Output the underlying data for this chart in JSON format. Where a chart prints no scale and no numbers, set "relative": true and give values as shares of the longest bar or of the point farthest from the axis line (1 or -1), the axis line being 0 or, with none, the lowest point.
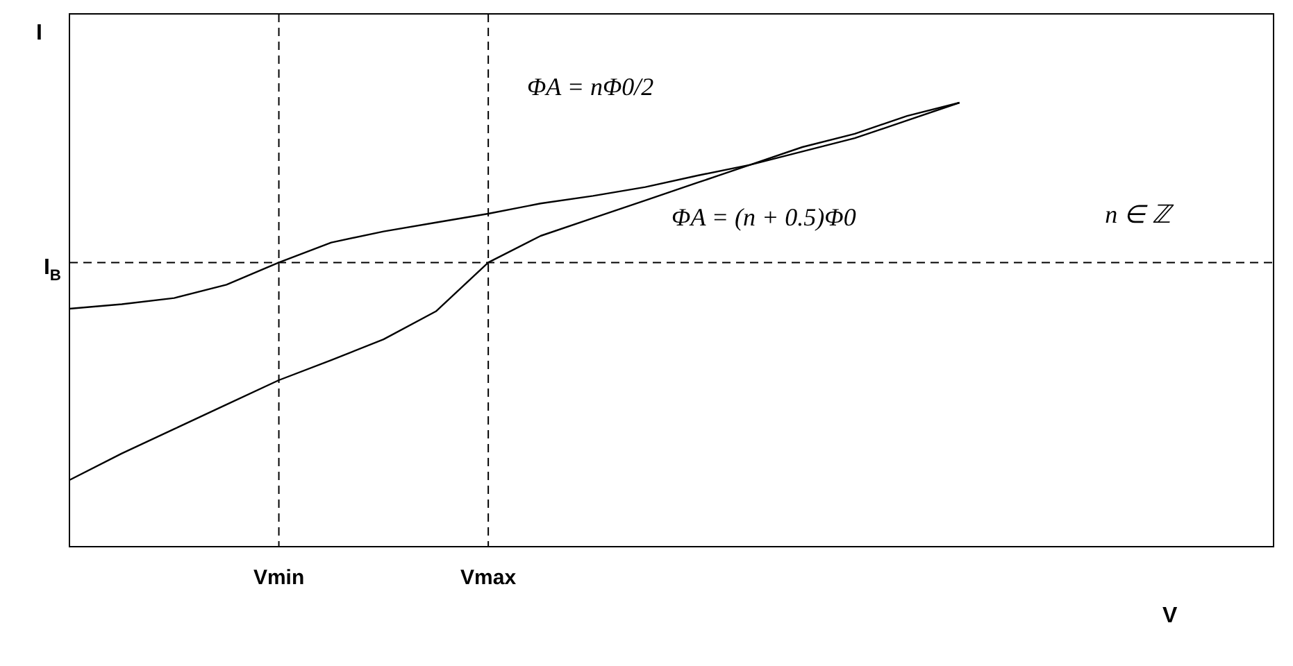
{
  "chart_data": {
    "type": "line",
    "relative": true,
    "xlabel": "V",
    "ylabel": "I",
    "categories": [
      null,
      null,
      null,
      null,
      "Vmin",
      null,
      null,
      null,
      "Vmax",
      null,
      null,
      null,
      null,
      null,
      null,
      null,
      null,
      null,
      null,
      null,
      null,
      null,
      null,
      null
    ],
    "series": [
      {
        "color": "#000000",
        "values": [
          0.536,
          0.546,
          0.56,
          0.59,
          0.64,
          0.685,
          0.71,
          0.73,
          0.75,
          0.773,
          0.79,
          0.81,
          0.836,
          0.86,
          0.89,
          0.92,
          0.96,
          1.0,
          null,
          null,
          null,
          null,
          null,
          null
        ]
      },
      {
        "color": "#000000",
        "values": [
          0.15,
          0.21,
          0.265,
          0.32,
          0.375,
          0.42,
          0.467,
          0.53,
          0.64,
          0.7,
          0.74,
          0.78,
          0.82,
          0.86,
          0.9,
          0.93,
          0.97,
          1.0,
          null,
          null,
          null,
          null,
          null,
          null
        ]
      }
    ],
    "ref_lines": [
      {
        "axis": "x",
        "value": "Vmin",
        "line_style": "dashed",
        "color": "#000000"
      },
      {
        "axis": "x",
        "value": "Vmax",
        "line_style": "dashed",
        "color": "#000000"
      },
      {
        "axis": "y",
        "value": 0.64,
        "label": "I$_{B}$",
        "line_style": "dashed",
        "color": "#000000"
      }
    ],
    "annotations": [
      "ΦA = nΦ0/2",
      "ΦA = (n + 0.5)Φ0",
      "n ∈ ℤ"
    ],
    "grid": false,
    "legend": false,
    "marker": "none",
    "line_style": "solid"
  }
}
